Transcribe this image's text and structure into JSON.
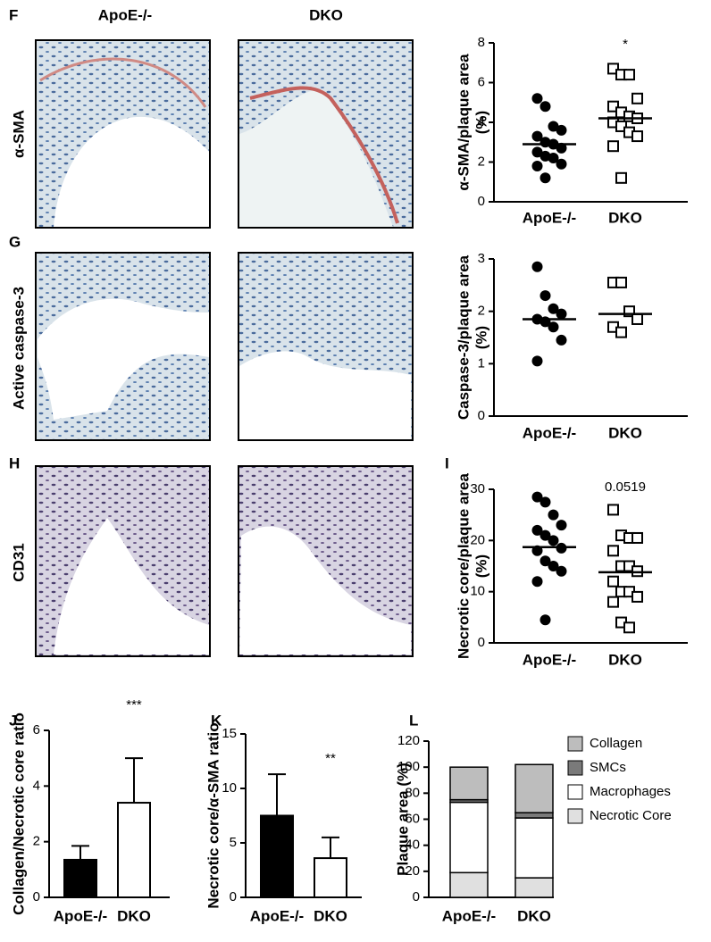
{
  "panel_letters": [
    "F",
    "G",
    "H",
    "I",
    "J",
    "K",
    "L"
  ],
  "image_columns": [
    "ApoE-/-",
    "DKO"
  ],
  "image_rows": [
    "α-SMA",
    "Active caspase-3",
    "CD31"
  ],
  "chart_data": [
    {
      "type": "dot",
      "ylabel": [
        "α-SMA/plaque area",
        "(%)"
      ],
      "categories": [
        "ApoE-/-",
        "DKO"
      ],
      "groups": [
        {
          "marker": "circle",
          "values": [
            5.2,
            4.8,
            3.8,
            3.6,
            3.3,
            3.0,
            2.9,
            2.7,
            2.5,
            2.3,
            2.2,
            1.9,
            1.8,
            1.2
          ],
          "mean": 2.9
        },
        {
          "marker": "square",
          "values": [
            6.7,
            6.4,
            6.4,
            5.2,
            4.8,
            4.5,
            4.3,
            4.2,
            4.0,
            3.8,
            3.5,
            3.3,
            2.8,
            1.2
          ],
          "mean": 4.2
        }
      ],
      "annotation": "*",
      "ylim": [
        0,
        8
      ],
      "yticks": [
        0,
        2,
        4,
        6,
        8
      ]
    },
    {
      "type": "dot",
      "ylabel": [
        "Caspase-3/plaque area",
        "(%)"
      ],
      "categories": [
        "ApoE-/-",
        "DKO"
      ],
      "groups": [
        {
          "marker": "circle",
          "values": [
            2.85,
            2.3,
            2.05,
            1.95,
            1.85,
            1.8,
            1.7,
            1.45,
            1.05
          ],
          "mean": 1.85
        },
        {
          "marker": "square",
          "values": [
            2.55,
            2.55,
            2.0,
            1.85,
            1.7,
            1.6
          ],
          "mean": 1.95
        }
      ],
      "ylim": [
        0,
        3
      ],
      "yticks": [
        0,
        1,
        2,
        3
      ]
    },
    {
      "type": "dot",
      "ylabel": [
        "Necrotic core/plaque area",
        "(%)"
      ],
      "categories": [
        "ApoE-/-",
        "DKO"
      ],
      "groups": [
        {
          "marker": "circle",
          "values": [
            28.5,
            27.5,
            25,
            23,
            22,
            21,
            20,
            18.5,
            18,
            16,
            15,
            14,
            12,
            4.5
          ],
          "mean": 18.7
        },
        {
          "marker": "square",
          "values": [
            26,
            21,
            20.5,
            20.5,
            18,
            15,
            15,
            14,
            12,
            10,
            10,
            9,
            8,
            4,
            3
          ],
          "mean": 13.8
        }
      ],
      "annotation": "0.0519",
      "ylim": [
        0,
        30
      ],
      "yticks": [
        0,
        10,
        20,
        30
      ]
    },
    {
      "type": "bar",
      "ylabel": [
        "Collagen/Necrotic core ratio"
      ],
      "categories": [
        "ApoE-/-",
        "DKO"
      ],
      "values": [
        1.35,
        3.4
      ],
      "errors": [
        0.5,
        1.6
      ],
      "colors": [
        "#000000",
        "#ffffff"
      ],
      "annotation": "***",
      "ylim": [
        0,
        6
      ],
      "yticks": [
        0,
        2,
        4,
        6
      ]
    },
    {
      "type": "bar",
      "ylabel": [
        "Necrotic core/α-SMA ratio"
      ],
      "categories": [
        "ApoE-/-",
        "DKO"
      ],
      "values": [
        7.5,
        3.6
      ],
      "errors": [
        3.8,
        1.9
      ],
      "colors": [
        "#000000",
        "#ffffff"
      ],
      "annotation": "**",
      "ylim": [
        0,
        15
      ],
      "yticks": [
        0,
        5,
        10,
        15
      ]
    },
    {
      "type": "stacked",
      "ylabel": [
        "Plaque area (%)"
      ],
      "categories": [
        "ApoE-/-",
        "DKO"
      ],
      "series": [
        {
          "name": "Necrotic Core",
          "color": "#e0e0e0",
          "values": [
            19,
            15
          ]
        },
        {
          "name": "Macrophages",
          "color": "#ffffff",
          "values": [
            54,
            46
          ]
        },
        {
          "name": "SMCs",
          "color": "#7a7a7a",
          "values": [
            2,
            4
          ]
        },
        {
          "name": "Collagen",
          "color": "#bdbdbd",
          "values": [
            25,
            37
          ]
        }
      ],
      "ylim": [
        0,
        120
      ],
      "yticks": [
        0,
        20,
        40,
        60,
        80,
        100,
        120
      ]
    }
  ]
}
